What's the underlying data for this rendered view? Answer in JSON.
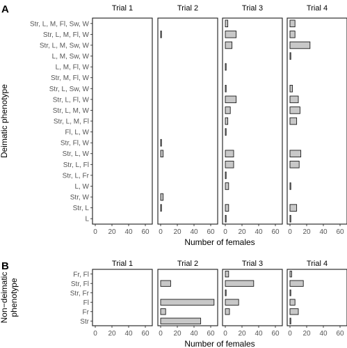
{
  "chart_data": [
    {
      "panel_letter": "A",
      "type": "bar",
      "orientation": "horizontal",
      "facets": [
        "Trial 1",
        "Trial 2",
        "Trial 3",
        "Trial 4"
      ],
      "ylabel": "Deimatic phenotype",
      "xlabel": "Number of females",
      "xlim": [
        0,
        65
      ],
      "xticks": [
        0,
        20,
        40,
        60
      ],
      "grid": false,
      "categories": [
        "Str, L, M, Fl, Sw, W",
        "Str, L, M, Fl, W",
        "Str, L, M, Sw, W",
        "L, M, Sw, W",
        "L, M, Fl, W",
        "Str, M, Fl, W",
        "Str, L, Sw, W",
        "Str, L, Fl, W",
        "Str, L, M, W",
        "Str, L, M, Fl",
        "Fl, L, W",
        "Str, Fl, W",
        "Str, L, W",
        "Str, L, Fl",
        "Str, L, Fr",
        "L, W",
        "Str, W",
        "Str, L",
        "L"
      ],
      "series": [
        {
          "facet": "Trial 1",
          "values": [
            0,
            0,
            0,
            0,
            0,
            0,
            0,
            0,
            0,
            0,
            0,
            0,
            0,
            0,
            0,
            0,
            0,
            0,
            0
          ]
        },
        {
          "facet": "Trial 2",
          "values": [
            0,
            1,
            0,
            0,
            0,
            0,
            0,
            0,
            0,
            0,
            0,
            1,
            3,
            0,
            0,
            0,
            3,
            1,
            0
          ]
        },
        {
          "facet": "Trial 3",
          "values": [
            3,
            13,
            8,
            0,
            1,
            0,
            1,
            13,
            6,
            3,
            1,
            0,
            10,
            10,
            1,
            4,
            0,
            4,
            1
          ]
        },
        {
          "facet": "Trial 4",
          "values": [
            6,
            6,
            24,
            1,
            0,
            0,
            3,
            10,
            12,
            8,
            0,
            0,
            13,
            11,
            0,
            1,
            0,
            8,
            1
          ]
        }
      ]
    },
    {
      "panel_letter": "B",
      "type": "bar",
      "orientation": "horizontal",
      "facets": [
        "Trial 1",
        "Trial 2",
        "Trial 3",
        "Trial 4"
      ],
      "ylabel": "Non−deimatic phenotype",
      "xlabel": "Number of females",
      "xlim": [
        0,
        65
      ],
      "xticks": [
        0,
        20,
        40,
        60
      ],
      "grid": false,
      "categories": [
        "Fr, Fl",
        "Str, Fl",
        "Str, Fr",
        "Fl",
        "Fr",
        "Str"
      ],
      "series": [
        {
          "facet": "Trial 1",
          "values": [
            0,
            0,
            0,
            0,
            0,
            0
          ]
        },
        {
          "facet": "Trial 2",
          "values": [
            0,
            12,
            0,
            64,
            6,
            48
          ]
        },
        {
          "facet": "Trial 3",
          "values": [
            4,
            34,
            1,
            16,
            5,
            0
          ]
        },
        {
          "facet": "Trial 4",
          "values": [
            2,
            16,
            1,
            6,
            10,
            1
          ]
        }
      ]
    }
  ],
  "colors": {
    "bar_fill": "#c8c8c8",
    "bar_stroke": "#1a1a1a",
    "axis": "#1a1a1a",
    "tick_label": "#555555"
  }
}
